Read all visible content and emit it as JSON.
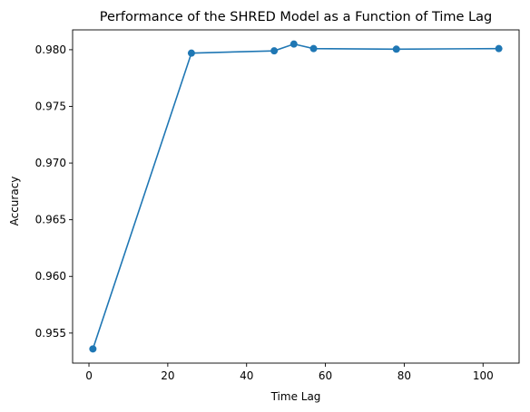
{
  "chart_data": {
    "type": "line",
    "title": "Performance of the SHRED Model as a Function of Time Lag",
    "xlabel": "Time Lag",
    "ylabel": "Accuracy",
    "xlim": [
      -4.15,
      109.15
    ],
    "ylim": [
      0.95235,
      0.98175
    ],
    "xticks": [
      0,
      20,
      40,
      60,
      80,
      100
    ],
    "xtick_labels": [
      "0",
      "20",
      "40",
      "60",
      "80",
      "100"
    ],
    "yticks": [
      0.955,
      0.96,
      0.965,
      0.97,
      0.975,
      0.98
    ],
    "ytick_labels": [
      "0.955",
      "0.960",
      "0.965",
      "0.970",
      "0.975",
      "0.980"
    ],
    "grid": false,
    "color": "#1f77b4",
    "marker": "circle",
    "series": [
      {
        "x": [
          1,
          26,
          47,
          52,
          57,
          78,
          104
        ],
        "y": [
          0.9536,
          0.9797,
          0.9799,
          0.9805,
          0.9801,
          0.98005,
          0.9801
        ]
      }
    ]
  }
}
